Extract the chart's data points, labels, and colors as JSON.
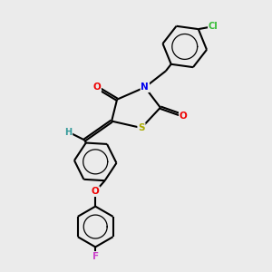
{
  "bg_color": "#ebebeb",
  "atom_colors": {
    "C": "#000000",
    "N": "#0000ee",
    "O": "#ee0000",
    "S": "#aaaa00",
    "Cl": "#33bb33",
    "F": "#cc44cc",
    "H": "#339999"
  },
  "bond_color": "#000000",
  "bond_lw": 1.5,
  "dbo": 0.04
}
